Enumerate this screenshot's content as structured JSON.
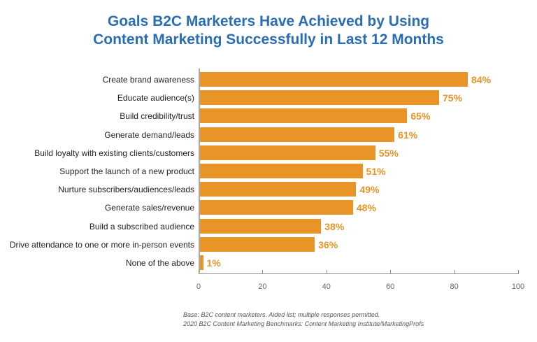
{
  "chart_data": {
    "type": "bar",
    "orientation": "horizontal",
    "title": "Goals B2C Marketers Have Achieved by Using Content Marketing Successfully in Last 12 Months",
    "title_lines": [
      "Goals B2C Marketers Have Achieved by Using",
      "Content Marketing Successfully in Last 12 Months"
    ],
    "categories": [
      "Create brand awareness",
      "Educate audience(s)",
      "Build credibility/trust",
      "Generate demand/leads",
      "Build loyalty with existing clients/customers",
      "Support the launch of a new product",
      "Nurture subscribers/audiences/leads",
      "Generate sales/revenue",
      "Build a subscribed audience",
      "Drive attendance to one or more in-person events",
      "None of the above"
    ],
    "values": [
      84,
      75,
      65,
      61,
      55,
      51,
      49,
      48,
      38,
      36,
      1
    ],
    "value_labels": [
      "84%",
      "75%",
      "65%",
      "61%",
      "55%",
      "51%",
      "49%",
      "48%",
      "38%",
      "36%",
      "1%"
    ],
    "xlabel": "",
    "ylabel": "",
    "xlim": [
      0,
      100
    ],
    "x_ticks": [
      "0",
      "20",
      "40",
      "60",
      "80",
      "100"
    ],
    "grid": false,
    "legend": null,
    "bar_color": "#e99427",
    "title_color": "#2a6db5",
    "footnotes": [
      "Base: B2C content marketers. Aided list; multiple responses permitted.",
      "2020 B2C Content Marketing Benchmarks: Content Marketing Institute/MarketingProfs"
    ]
  }
}
